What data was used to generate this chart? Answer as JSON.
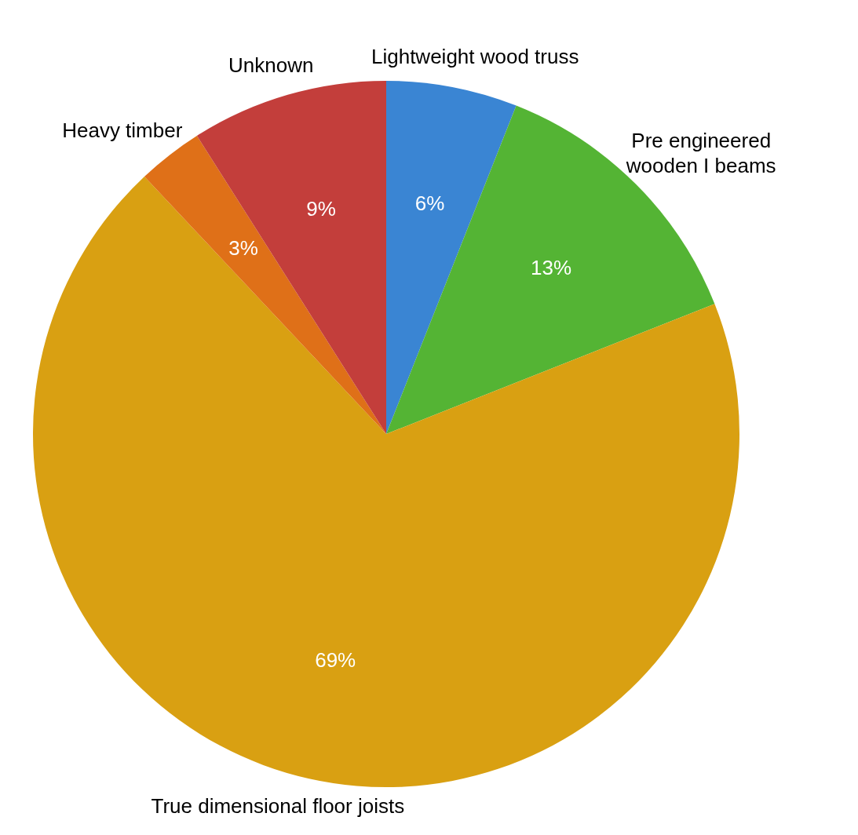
{
  "chart_data": {
    "type": "pie",
    "categories": [
      "Lightweight wood truss",
      "Pre engineered wooden I beams",
      "True dimensional floor joists",
      "Heavy timber",
      "Unknown"
    ],
    "values": [
      6,
      13,
      69,
      3,
      9
    ],
    "colors": [
      "#3a85d3",
      "#54b434",
      "#d9a012",
      "#df7018",
      "#c33e3b"
    ],
    "value_labels": [
      "6%",
      "13%",
      "69%",
      "3%",
      "9%"
    ],
    "legend": false
  }
}
